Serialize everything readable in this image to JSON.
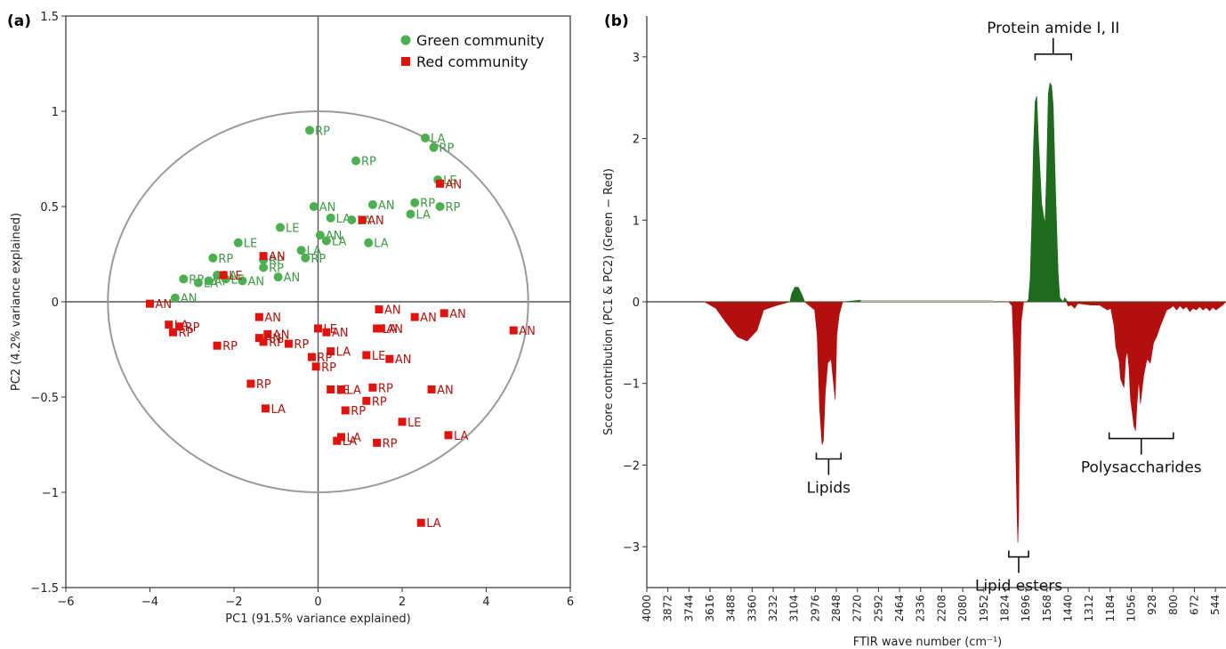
{
  "chart_data": [
    {
      "type": "scatter",
      "panel_label": "(a)",
      "xlabel": "PC1 (91.5% variance explained)",
      "ylabel": "PC2 (4.2% variance explained)",
      "xlim": [
        -6,
        6
      ],
      "ylim": [
        -1.5,
        1.5
      ],
      "xticks": [
        "−6",
        "−4",
        "−2",
        "0",
        "2",
        "4",
        "6"
      ],
      "yticks": [
        "−1.5",
        "−1",
        "−0.5",
        "0",
        "0.5",
        "1",
        "1.5"
      ],
      "grid": false,
      "legend_position": "top-right",
      "circle": {
        "center": [
          0,
          0
        ],
        "radius": 1
      },
      "series": [
        {
          "name": "Green community",
          "marker": "circle",
          "color": "#4CAF50",
          "label_color": "#3e9a45",
          "points": [
            {
              "x": -0.2,
              "y": 0.9,
              "label": "RP"
            },
            {
              "x": 2.55,
              "y": 0.86,
              "label": "LA"
            },
            {
              "x": 2.75,
              "y": 0.81,
              "label": "RP"
            },
            {
              "x": 0.9,
              "y": 0.74,
              "label": "RP"
            },
            {
              "x": 2.85,
              "y": 0.64,
              "label": "LE"
            },
            {
              "x": -0.1,
              "y": 0.5,
              "label": "AN"
            },
            {
              "x": 1.3,
              "y": 0.51,
              "label": "AN"
            },
            {
              "x": 2.3,
              "y": 0.52,
              "label": "RP"
            },
            {
              "x": 2.9,
              "y": 0.5,
              "label": "RP"
            },
            {
              "x": 0.3,
              "y": 0.44,
              "label": "LA"
            },
            {
              "x": 0.8,
              "y": 0.43,
              "label": "LA"
            },
            {
              "x": 2.2,
              "y": 0.46,
              "label": "LA"
            },
            {
              "x": -0.9,
              "y": 0.39,
              "label": "LE"
            },
            {
              "x": 0.05,
              "y": 0.35,
              "label": "AN"
            },
            {
              "x": 0.2,
              "y": 0.32,
              "label": "LA"
            },
            {
              "x": 1.2,
              "y": 0.31,
              "label": "LA"
            },
            {
              "x": -1.9,
              "y": 0.31,
              "label": "LE"
            },
            {
              "x": -0.4,
              "y": 0.27,
              "label": "LA"
            },
            {
              "x": -0.3,
              "y": 0.23,
              "label": "RP"
            },
            {
              "x": -2.5,
              "y": 0.23,
              "label": "RP"
            },
            {
              "x": -1.3,
              "y": 0.22,
              "label": "RP"
            },
            {
              "x": -1.3,
              "y": 0.18,
              "label": "RP"
            },
            {
              "x": -2.4,
              "y": 0.14,
              "label": "LA"
            },
            {
              "x": -0.95,
              "y": 0.13,
              "label": "AN"
            },
            {
              "x": -3.2,
              "y": 0.12,
              "label": "RP"
            },
            {
              "x": -2.85,
              "y": 0.1,
              "label": "LA"
            },
            {
              "x": -2.6,
              "y": 0.11,
              "label": "AP"
            },
            {
              "x": -2.2,
              "y": 0.12,
              "label": "LE"
            },
            {
              "x": -1.8,
              "y": 0.11,
              "label": "AN"
            },
            {
              "x": -3.4,
              "y": 0.02,
              "label": "AN"
            }
          ]
        },
        {
          "name": "Red community",
          "marker": "square",
          "color": "#e0130e",
          "label_color": "#b0120d",
          "points": [
            {
              "x": -4.0,
              "y": -0.01,
              "label": "AN"
            },
            {
              "x": -3.55,
              "y": -0.12,
              "label": "LA"
            },
            {
              "x": -3.45,
              "y": -0.16,
              "label": "RP"
            },
            {
              "x": -3.3,
              "y": -0.13,
              "label": "RP"
            },
            {
              "x": -2.4,
              "y": -0.23,
              "label": "RP"
            },
            {
              "x": -1.4,
              "y": -0.08,
              "label": "AN"
            },
            {
              "x": -1.2,
              "y": -0.17,
              "label": "AN"
            },
            {
              "x": -1.4,
              "y": -0.19,
              "label": "AN"
            },
            {
              "x": -1.3,
              "y": -0.21,
              "label": "RP"
            },
            {
              "x": -0.7,
              "y": -0.22,
              "label": "RP"
            },
            {
              "x": 0.0,
              "y": -0.14,
              "label": "LE"
            },
            {
              "x": 0.2,
              "y": -0.16,
              "label": "AN"
            },
            {
              "x": 0.3,
              "y": -0.26,
              "label": "LA"
            },
            {
              "x": -0.15,
              "y": -0.29,
              "label": "RP"
            },
            {
              "x": -0.05,
              "y": -0.34,
              "label": "RP"
            },
            {
              "x": 1.45,
              "y": -0.04,
              "label": "AN"
            },
            {
              "x": 2.3,
              "y": -0.08,
              "label": "AN"
            },
            {
              "x": 3.0,
              "y": -0.06,
              "label": "AN"
            },
            {
              "x": 1.4,
              "y": -0.14,
              "label": "LA"
            },
            {
              "x": 1.5,
              "y": -0.14,
              "label": "AN"
            },
            {
              "x": 4.65,
              "y": -0.15,
              "label": "AN"
            },
            {
              "x": 1.15,
              "y": -0.28,
              "label": "LE"
            },
            {
              "x": 1.7,
              "y": -0.3,
              "label": "AN"
            },
            {
              "x": 0.3,
              "y": -0.46,
              "label": "LE"
            },
            {
              "x": 0.55,
              "y": -0.46,
              "label": "LA"
            },
            {
              "x": 1.3,
              "y": -0.45,
              "label": "RP"
            },
            {
              "x": 2.7,
              "y": -0.46,
              "label": "AN"
            },
            {
              "x": 1.15,
              "y": -0.52,
              "label": "RP"
            },
            {
              "x": 0.65,
              "y": -0.57,
              "label": "RP"
            },
            {
              "x": 2.0,
              "y": -0.63,
              "label": "LE"
            },
            {
              "x": 3.1,
              "y": -0.7,
              "label": "LA"
            },
            {
              "x": 0.55,
              "y": -0.71,
              "label": "LA"
            },
            {
              "x": 0.45,
              "y": -0.73,
              "label": "LA"
            },
            {
              "x": 1.4,
              "y": -0.74,
              "label": "RP"
            },
            {
              "x": -1.6,
              "y": -0.43,
              "label": "RP"
            },
            {
              "x": -1.25,
              "y": -0.56,
              "label": "LA"
            },
            {
              "x": 2.45,
              "y": -1.16,
              "label": "LA"
            },
            {
              "x": -1.3,
              "y": 0.24,
              "label": "AN"
            },
            {
              "x": 1.05,
              "y": 0.43,
              "label": "AN"
            },
            {
              "x": 2.9,
              "y": 0.62,
              "label": "AN"
            },
            {
              "x": -2.25,
              "y": 0.14,
              "label": "LE"
            }
          ]
        }
      ]
    },
    {
      "type": "area",
      "panel_label": "(b)",
      "xlabel": "FTIR wave number (cm⁻¹)",
      "ylabel": "Score contribution (PC1 & PC2) (Green − Red)",
      "xlim": [
        4000,
        480
      ],
      "x_reversed": true,
      "ylim": [
        -3.5,
        3.5
      ],
      "xticks": [
        "4000",
        "3872",
        "3744",
        "3616",
        "3488",
        "3360",
        "3232",
        "3104",
        "2976",
        "2848",
        "2720",
        "2592",
        "2464",
        "2336",
        "2208",
        "2080",
        "1952",
        "1824",
        "1696",
        "1568",
        "1440",
        "1312",
        "1184",
        "1056",
        "928",
        "800",
        "672",
        "544"
      ],
      "yticks": [
        "−3",
        "−2",
        "−1",
        "0",
        "1",
        "2",
        "3"
      ],
      "positive_color": "#1e6b1e",
      "negative_color": "#b30f0f",
      "zero_line_color": "#bbbbbb",
      "series": [
        {
          "name": "",
          "x": [
            3650,
            3580,
            3520,
            3450,
            3390,
            3330,
            3290,
            3220,
            3130,
            3120,
            3100,
            3080,
            3060,
            3040,
            2980,
            2965,
            2950,
            2935,
            2927,
            2915,
            2900,
            2880,
            2865,
            2855,
            2850,
            2845,
            2830,
            2810,
            2700,
            2600,
            2500,
            2000,
            1800,
            1780,
            1770,
            1760,
            1750,
            1745,
            1740,
            1735,
            1725,
            1710,
            1690,
            1680,
            1670,
            1660,
            1650,
            1640,
            1630,
            1620,
            1600,
            1580,
            1570,
            1560,
            1550,
            1540,
            1530,
            1515,
            1500,
            1490,
            1470,
            1460,
            1450,
            1440,
            1420,
            1400,
            1380,
            1300,
            1250,
            1200,
            1180,
            1160,
            1150,
            1130,
            1120,
            1100,
            1090,
            1080,
            1070,
            1060,
            1050,
            1040,
            1030,
            1020,
            1010,
            1000,
            980,
            960,
            940,
            920,
            900,
            880,
            860,
            840,
            820,
            800,
            780,
            760,
            740,
            720,
            700,
            680,
            660,
            640,
            620,
            600,
            580,
            560,
            540,
            520,
            500,
            480
          ],
          "y": [
            0,
            -0.08,
            -0.25,
            -0.43,
            -0.48,
            -0.35,
            -0.1,
            -0.05,
            0,
            0.1,
            0.18,
            0.18,
            0.1,
            0,
            -0.1,
            -0.4,
            -1.3,
            -1.75,
            -1.7,
            -1.1,
            -0.75,
            -0.7,
            -1.0,
            -1.2,
            -0.8,
            -0.4,
            -0.15,
            0,
            0.02,
            0.01,
            0.01,
            0,
            0,
            -0.05,
            -0.6,
            -1.6,
            -2.6,
            -2.95,
            -2.6,
            -1.3,
            -0.25,
            0,
            0,
            0.03,
            0.3,
            1.0,
            1.9,
            2.45,
            2.52,
            2.0,
            1.2,
            0.95,
            1.6,
            2.55,
            2.68,
            2.65,
            2.4,
            1.3,
            0.35,
            0.05,
            0,
            0.05,
            0.02,
            -0.05,
            -0.04,
            -0.08,
            -0.02,
            -0.04,
            -0.04,
            -0.1,
            -0.08,
            -0.3,
            -0.55,
            -0.72,
            -0.95,
            -1.05,
            -0.7,
            -0.6,
            -0.8,
            -1.2,
            -1.35,
            -1.52,
            -1.58,
            -1.22,
            -0.95,
            -1.25,
            -0.9,
            -0.7,
            -0.75,
            -0.5,
            -0.42,
            -0.3,
            -0.2,
            -0.1,
            -0.08,
            -0.05,
            -0.1,
            -0.05,
            -0.09,
            -0.06,
            -0.12,
            -0.08,
            -0.1,
            -0.06,
            -0.1,
            -0.07,
            -0.11,
            -0.07,
            -0.1,
            -0.07,
            -0.04,
            0
          ]
        }
      ],
      "annotations": [
        {
          "text": "Protein amide I, II",
          "bracket_x": [
            1640,
            1420
          ],
          "y": 2.75
        },
        {
          "text": "Lipids",
          "bracket_x": [
            2970,
            2820
          ],
          "y": -1.75
        },
        {
          "text": "Lipid esters",
          "bracket_x": [
            1800,
            1680
          ],
          "y": -2.95
        },
        {
          "text": "Polysaccharides",
          "bracket_x": [
            1190,
            800
          ],
          "y": -1.5
        }
      ]
    }
  ]
}
